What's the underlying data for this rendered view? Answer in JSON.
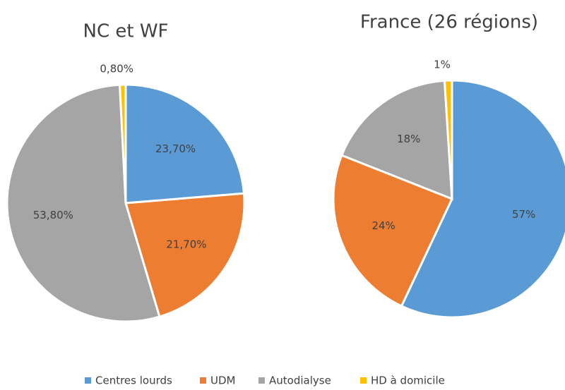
{
  "legend": {
    "names": [
      "Centres lourds",
      "UDM",
      "Autodialyse",
      "HD à domicile"
    ],
    "colors": [
      "#5b9bd5",
      "#ed7d31",
      "#a5a5a5",
      "#ffc000"
    ]
  },
  "chart_data": [
    {
      "type": "pie",
      "title": "NC et WF",
      "values": [
        23.7,
        21.7,
        53.8,
        0.8
      ],
      "value_labels": [
        "23,70%",
        "21,70%",
        "53,80%",
        "0,80%"
      ]
    },
    {
      "type": "pie",
      "title": "France (26 régions)",
      "values": [
        57,
        24,
        18,
        1
      ],
      "value_labels": [
        "57%",
        "24%",
        "18%",
        "1%"
      ]
    }
  ]
}
